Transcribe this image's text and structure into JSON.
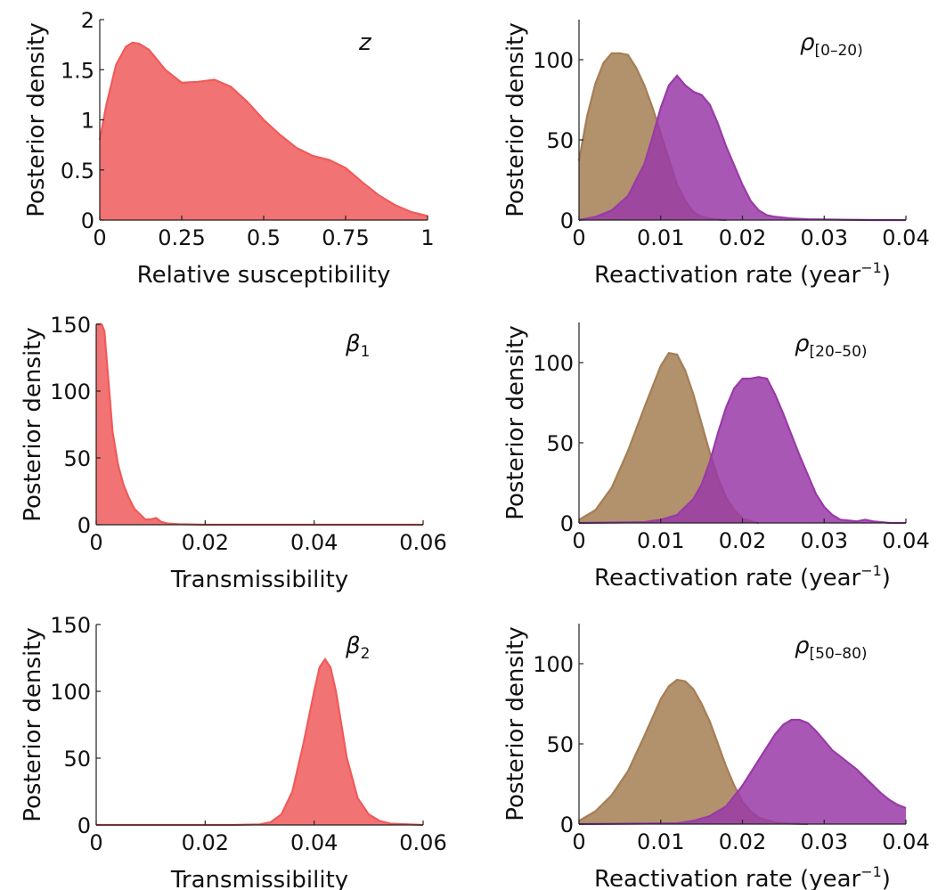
{
  "chart_data": [
    {
      "type": "area",
      "panel_label": "z",
      "xlabel": "Relative susceptibility",
      "ylabel": "Posterior density",
      "xlim": [
        0,
        1
      ],
      "ylim": [
        0,
        2
      ],
      "xticks": [
        0,
        0.25,
        0.5,
        0.75,
        1
      ],
      "xtick_labels": [
        "0",
        "0.25",
        "0.5",
        "0.75",
        "1"
      ],
      "yticks": [
        0,
        0.5,
        1,
        1.5,
        2
      ],
      "ytick_labels": [
        "0",
        "0.5",
        "1",
        "1.5",
        "2"
      ],
      "series": [
        {
          "color": "#f05a5a",
          "x": [
            0,
            0.02,
            0.05,
            0.08,
            0.1,
            0.12,
            0.15,
            0.2,
            0.25,
            0.3,
            0.35,
            0.4,
            0.45,
            0.5,
            0.55,
            0.6,
            0.65,
            0.7,
            0.75,
            0.8,
            0.85,
            0.9,
            0.95,
            1
          ],
          "y": [
            0.8,
            1.15,
            1.55,
            1.73,
            1.77,
            1.76,
            1.7,
            1.5,
            1.37,
            1.38,
            1.4,
            1.33,
            1.18,
            1.0,
            0.85,
            0.72,
            0.64,
            0.6,
            0.52,
            0.38,
            0.25,
            0.15,
            0.08,
            0.04
          ]
        }
      ]
    },
    {
      "type": "area",
      "panel_label": "ρ[0–20)",
      "xlabel": "Reactivation rate (year−1)",
      "ylabel": "Posterior density",
      "xlim": [
        0,
        0.04
      ],
      "ylim": [
        0,
        125
      ],
      "xticks": [
        0,
        0.01,
        0.02,
        0.03,
        0.04
      ],
      "xtick_labels": [
        "0",
        "0.01",
        "0.02",
        "0.03",
        "0.04"
      ],
      "yticks": [
        0,
        50,
        100
      ],
      "ytick_labels": [
        "0",
        "50",
        "100"
      ],
      "series": [
        {
          "color": "#a57e54",
          "x": [
            0,
            0.001,
            0.002,
            0.003,
            0.004,
            0.005,
            0.006,
            0.007,
            0.008,
            0.009,
            0.01,
            0.011,
            0.012,
            0.013,
            0.014,
            0.015,
            0.016,
            0.017,
            0.018
          ],
          "y": [
            37,
            65,
            85,
            98,
            104,
            104,
            103,
            95,
            84,
            70,
            54,
            38,
            22,
            12,
            5,
            2,
            1,
            0.3,
            0
          ]
        },
        {
          "color": "#9a3aa8",
          "x": [
            0,
            0.002,
            0.004,
            0.006,
            0.008,
            0.009,
            0.01,
            0.011,
            0.012,
            0.013,
            0.014,
            0.015,
            0.016,
            0.017,
            0.018,
            0.019,
            0.02,
            0.021,
            0.022,
            0.023,
            0.024,
            0.026,
            0.028,
            0.032,
            0.036,
            0.04
          ],
          "y": [
            0,
            2,
            6,
            15,
            35,
            52,
            70,
            84,
            90,
            84,
            80,
            78,
            72,
            60,
            46,
            34,
            22,
            12,
            6,
            3,
            2,
            1,
            0.5,
            0.2,
            0,
            0
          ]
        }
      ]
    },
    {
      "type": "area",
      "panel_label": "β1",
      "xlabel": "Transmissibility",
      "ylabel": "Posterior density",
      "xlim": [
        0,
        0.06
      ],
      "ylim": [
        0,
        150
      ],
      "xticks": [
        0,
        0.02,
        0.04,
        0.06
      ],
      "xtick_labels": [
        "0",
        "0.02",
        "0.04",
        "0.06"
      ],
      "yticks": [
        0,
        50,
        100,
        150
      ],
      "ytick_labels": [
        "0",
        "50",
        "100",
        "150"
      ],
      "series": [
        {
          "color": "#f05a5a",
          "x": [
            0,
            0.0005,
            0.001,
            0.0015,
            0.002,
            0.0025,
            0.003,
            0.004,
            0.005,
            0.006,
            0.007,
            0.008,
            0.009,
            0.01,
            0.011,
            0.012,
            0.013,
            0.015,
            0.02,
            0.06
          ],
          "y": [
            150,
            150,
            150,
            145,
            120,
            95,
            70,
            45,
            30,
            20,
            12,
            8,
            4,
            4,
            5,
            2,
            1,
            0.5,
            0,
            0
          ]
        }
      ]
    },
    {
      "type": "area",
      "panel_label": "ρ[20–50)",
      "xlabel": "Reactivation rate (year−1)",
      "ylabel": "Posterior density",
      "xlim": [
        0,
        0.04
      ],
      "ylim": [
        0,
        125
      ],
      "xticks": [
        0,
        0.01,
        0.02,
        0.03,
        0.04
      ],
      "xtick_labels": [
        "0",
        "0.01",
        "0.02",
        "0.03",
        "0.04"
      ],
      "yticks": [
        0,
        50,
        100
      ],
      "ytick_labels": [
        "0",
        "50",
        "100"
      ],
      "series": [
        {
          "color": "#a57e54",
          "x": [
            0,
            0.002,
            0.004,
            0.006,
            0.008,
            0.01,
            0.011,
            0.012,
            0.013,
            0.014,
            0.015,
            0.016,
            0.017,
            0.018,
            0.019,
            0.02,
            0.021,
            0.022
          ],
          "y": [
            2,
            8,
            22,
            45,
            72,
            98,
            106,
            105,
            95,
            80,
            62,
            44,
            28,
            16,
            8,
            3,
            1,
            0
          ]
        },
        {
          "color": "#9a3aa8",
          "x": [
            0,
            0.008,
            0.01,
            0.012,
            0.014,
            0.015,
            0.016,
            0.017,
            0.018,
            0.019,
            0.02,
            0.021,
            0.022,
            0.023,
            0.024,
            0.025,
            0.026,
            0.027,
            0.028,
            0.029,
            0.03,
            0.031,
            0.032,
            0.034,
            0.035,
            0.036,
            0.038,
            0.04
          ],
          "y": [
            0,
            0.5,
            2,
            5,
            15,
            24,
            38,
            56,
            72,
            84,
            90,
            90,
            91,
            90,
            80,
            68,
            55,
            42,
            30,
            18,
            10,
            5,
            2,
            1,
            2,
            1,
            0,
            0
          ]
        }
      ]
    },
    {
      "type": "area",
      "panel_label": "β2",
      "xlabel": "Transmissibility",
      "ylabel": "Posterior density",
      "xlim": [
        0,
        0.06
      ],
      "ylim": [
        0,
        150
      ],
      "xticks": [
        0,
        0.02,
        0.04,
        0.06
      ],
      "xtick_labels": [
        "0",
        "0.02",
        "0.04",
        "0.06"
      ],
      "yticks": [
        0,
        50,
        100,
        150
      ],
      "ytick_labels": [
        "0",
        "50",
        "100",
        "150"
      ],
      "series": [
        {
          "color": "#f05a5a",
          "x": [
            0,
            0.025,
            0.03,
            0.032,
            0.034,
            0.036,
            0.038,
            0.04,
            0.041,
            0.042,
            0.043,
            0.044,
            0.045,
            0.046,
            0.048,
            0.05,
            0.052,
            0.054,
            0.06
          ],
          "y": [
            0,
            0,
            0.5,
            2,
            8,
            25,
            60,
            100,
            118,
            124,
            118,
            100,
            75,
            50,
            20,
            8,
            3,
            1,
            0
          ]
        }
      ]
    },
    {
      "type": "area",
      "panel_label": "ρ[50–80)",
      "xlabel": "Reactivation rate (year−1)",
      "ylabel": "Posterior density",
      "xlim": [
        0,
        0.04
      ],
      "ylim": [
        0,
        125
      ],
      "xticks": [
        0,
        0.01,
        0.02,
        0.03,
        0.04
      ],
      "xtick_labels": [
        "0",
        "0.01",
        "0.02",
        "0.03",
        "0.04"
      ],
      "yticks": [
        0,
        50,
        100
      ],
      "ytick_labels": [
        "0",
        "50",
        "100"
      ],
      "series": [
        {
          "color": "#a57e54",
          "x": [
            0,
            0.002,
            0.004,
            0.006,
            0.008,
            0.01,
            0.011,
            0.012,
            0.013,
            0.014,
            0.015,
            0.016,
            0.017,
            0.018,
            0.019,
            0.02,
            0.021,
            0.022,
            0.024,
            0.026,
            0.028
          ],
          "y": [
            2,
            8,
            18,
            33,
            55,
            78,
            86,
            90,
            89,
            84,
            75,
            64,
            50,
            36,
            24,
            14,
            8,
            4,
            1,
            0.3,
            0
          ]
        },
        {
          "color": "#9a3aa8",
          "x": [
            0,
            0.012,
            0.014,
            0.016,
            0.018,
            0.02,
            0.022,
            0.024,
            0.025,
            0.026,
            0.027,
            0.028,
            0.029,
            0.03,
            0.031,
            0.032,
            0.033,
            0.034,
            0.035,
            0.036,
            0.037,
            0.038,
            0.039,
            0.04
          ],
          "y": [
            0,
            0.5,
            2,
            5,
            11,
            24,
            40,
            56,
            62,
            65,
            65,
            63,
            58,
            52,
            46,
            42,
            38,
            34,
            29,
            24,
            19,
            15,
            12,
            10
          ]
        }
      ]
    }
  ]
}
